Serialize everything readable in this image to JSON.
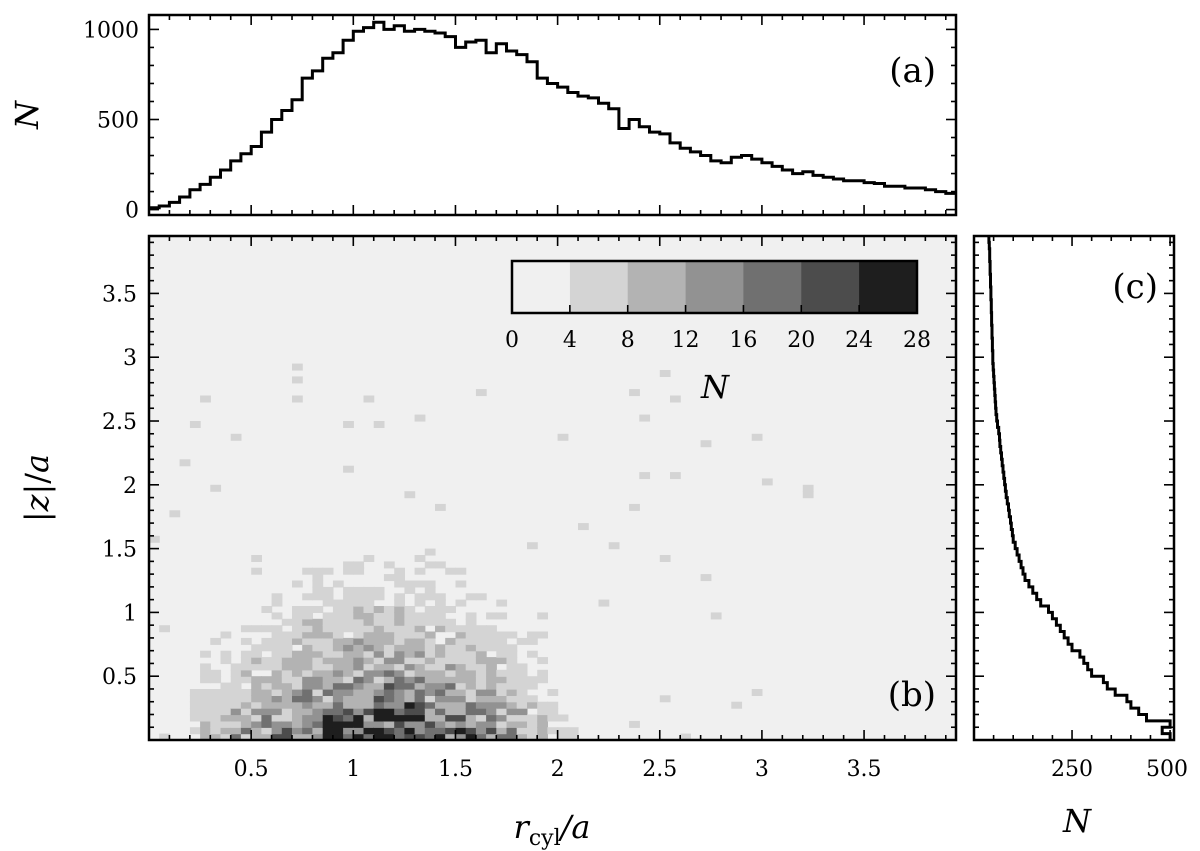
{
  "chart_data": [
    {
      "panel": "a",
      "type": "line",
      "label": "(a)",
      "ylabel": "N",
      "xlim": [
        0,
        3.95
      ],
      "ylim": [
        -30,
        1080
      ],
      "yticks": [
        0,
        500,
        1000
      ],
      "x": [
        0.0,
        0.05,
        0.1,
        0.15,
        0.2,
        0.25,
        0.3,
        0.35,
        0.4,
        0.45,
        0.5,
        0.55,
        0.6,
        0.65,
        0.7,
        0.75,
        0.8,
        0.85,
        0.9,
        0.95,
        1.0,
        1.05,
        1.1,
        1.15,
        1.2,
        1.25,
        1.3,
        1.35,
        1.4,
        1.45,
        1.5,
        1.55,
        1.6,
        1.65,
        1.7,
        1.75,
        1.8,
        1.85,
        1.9,
        1.95,
        2.0,
        2.05,
        2.1,
        2.15,
        2.2,
        2.25,
        2.3,
        2.35,
        2.4,
        2.45,
        2.5,
        2.55,
        2.6,
        2.65,
        2.7,
        2.75,
        2.8,
        2.85,
        2.9,
        2.95,
        3.0,
        3.05,
        3.1,
        3.15,
        3.2,
        3.25,
        3.3,
        3.35,
        3.4,
        3.45,
        3.5,
        3.55,
        3.6,
        3.65,
        3.7,
        3.75,
        3.8,
        3.85,
        3.9,
        3.95
      ],
      "values": [
        10,
        20,
        40,
        70,
        110,
        140,
        180,
        220,
        270,
        310,
        350,
        430,
        500,
        550,
        610,
        730,
        770,
        840,
        870,
        940,
        990,
        1010,
        1040,
        1000,
        1020,
        990,
        1000,
        990,
        980,
        960,
        900,
        930,
        940,
        870,
        920,
        880,
        860,
        820,
        730,
        700,
        680,
        650,
        630,
        620,
        590,
        560,
        450,
        500,
        460,
        430,
        420,
        370,
        340,
        320,
        300,
        270,
        260,
        290,
        300,
        280,
        260,
        240,
        220,
        200,
        210,
        190,
        180,
        170,
        160,
        160,
        150,
        145,
        130,
        130,
        120,
        120,
        110,
        100,
        90,
        90
      ]
    },
    {
      "panel": "b",
      "type": "heatmap",
      "label": "(b)",
      "xlabel": "r_cyl/a",
      "ylabel": "|z|/a",
      "xlim": [
        0,
        3.95
      ],
      "ylim": [
        0,
        3.95
      ],
      "xticks": [
        0.5,
        1.0,
        1.5,
        2.0,
        2.5,
        3.0,
        3.5
      ],
      "yticks": [
        0.5,
        1.0,
        1.5,
        2.0,
        2.5,
        3.0,
        3.5
      ],
      "colorbar": {
        "label": "N",
        "levels": [
          0,
          4,
          8,
          12,
          16,
          20,
          24,
          28
        ],
        "colors": [
          "#f0f0f0",
          "#d4d4d4",
          "#b3b3b3",
          "#929292",
          "#707070",
          "#4c4c4c",
          "#1e1e1e"
        ]
      }
    },
    {
      "panel": "c",
      "type": "line",
      "label": "(c)",
      "xlabel": "N",
      "xlim": [
        0,
        510
      ],
      "ylim": [
        0,
        3.95
      ],
      "xticks": [
        250,
        500
      ],
      "y": [
        0.0,
        0.05,
        0.1,
        0.15,
        0.2,
        0.25,
        0.3,
        0.35,
        0.4,
        0.45,
        0.5,
        0.55,
        0.6,
        0.65,
        0.7,
        0.75,
        0.8,
        0.85,
        0.9,
        0.95,
        1.0,
        1.05,
        1.1,
        1.15,
        1.2,
        1.25,
        1.3,
        1.35,
        1.4,
        1.45,
        1.5,
        1.55,
        1.6,
        1.65,
        1.7,
        1.75,
        1.8,
        1.85,
        1.9,
        1.95,
        2.0,
        2.05,
        2.1,
        2.15,
        2.2,
        2.25,
        2.3,
        2.35,
        2.4,
        2.45,
        2.5,
        2.55,
        2.6,
        2.65,
        2.7,
        2.75,
        2.8,
        2.85,
        2.9,
        2.95,
        3.0,
        3.05,
        3.1,
        3.15,
        3.2,
        3.25,
        3.3,
        3.35,
        3.4,
        3.45,
        3.5,
        3.55,
        3.6,
        3.65,
        3.7,
        3.75,
        3.8,
        3.85,
        3.9
      ],
      "values": [
        500,
        480,
        500,
        440,
        420,
        400,
        390,
        360,
        340,
        330,
        300,
        290,
        280,
        270,
        250,
        240,
        230,
        220,
        210,
        200,
        190,
        170,
        160,
        150,
        140,
        130,
        125,
        120,
        115,
        110,
        105,
        100,
        98,
        95,
        93,
        90,
        88,
        85,
        82,
        80,
        78,
        76,
        74,
        72,
        70,
        68,
        66,
        65,
        63,
        60,
        58,
        56,
        55,
        54,
        53,
        52,
        51,
        50,
        49,
        48,
        48,
        47,
        47,
        46,
        46,
        45,
        45,
        44,
        44,
        43,
        43,
        42,
        42,
        41,
        41,
        40,
        40,
        39,
        38
      ]
    }
  ]
}
